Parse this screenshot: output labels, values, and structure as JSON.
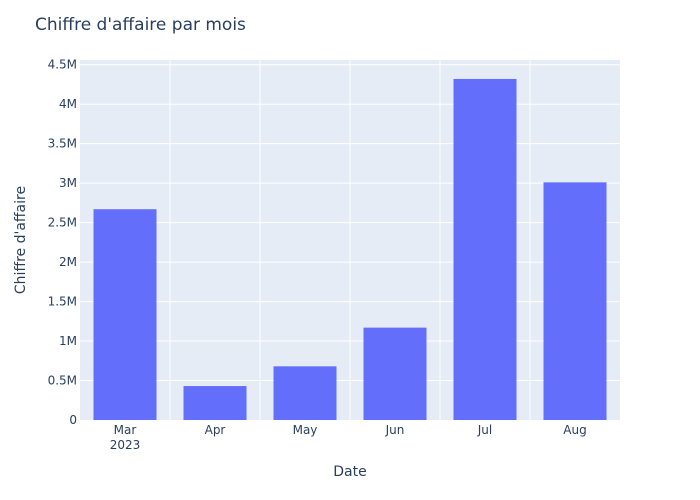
{
  "chart_data": {
    "type": "bar",
    "title": "Chiffre d'affaire par mois",
    "xlabel": "Date",
    "ylabel": "Chiffre d'affaire",
    "categories": [
      "2023-03",
      "2023-04",
      "2023-05",
      "2023-06",
      "2023-07",
      "2023-08"
    ],
    "x_tick_labels": [
      [
        "Mar",
        "2023"
      ],
      [
        "Apr"
      ],
      [
        "May"
      ],
      [
        "Jun"
      ],
      [
        "Jul"
      ],
      [
        "Aug"
      ]
    ],
    "values": [
      2670000,
      430000,
      680000,
      1170000,
      4320000,
      3010000
    ],
    "ylim": [
      0,
      4560000
    ],
    "y_ticks": [
      0,
      500000,
      1000000,
      1500000,
      2000000,
      2500000,
      3000000,
      3500000,
      4000000,
      4500000
    ],
    "y_tick_labels": [
      "0",
      "0.5M",
      "1M",
      "1.5M",
      "2M",
      "2.5M",
      "3M",
      "3.5M",
      "4M",
      "4.5M"
    ],
    "grid": true,
    "colors": {
      "bar": "#636efa",
      "plot_bg": "#e5ecf6",
      "grid": "#ffffff",
      "text": "#2a3f5f"
    }
  }
}
